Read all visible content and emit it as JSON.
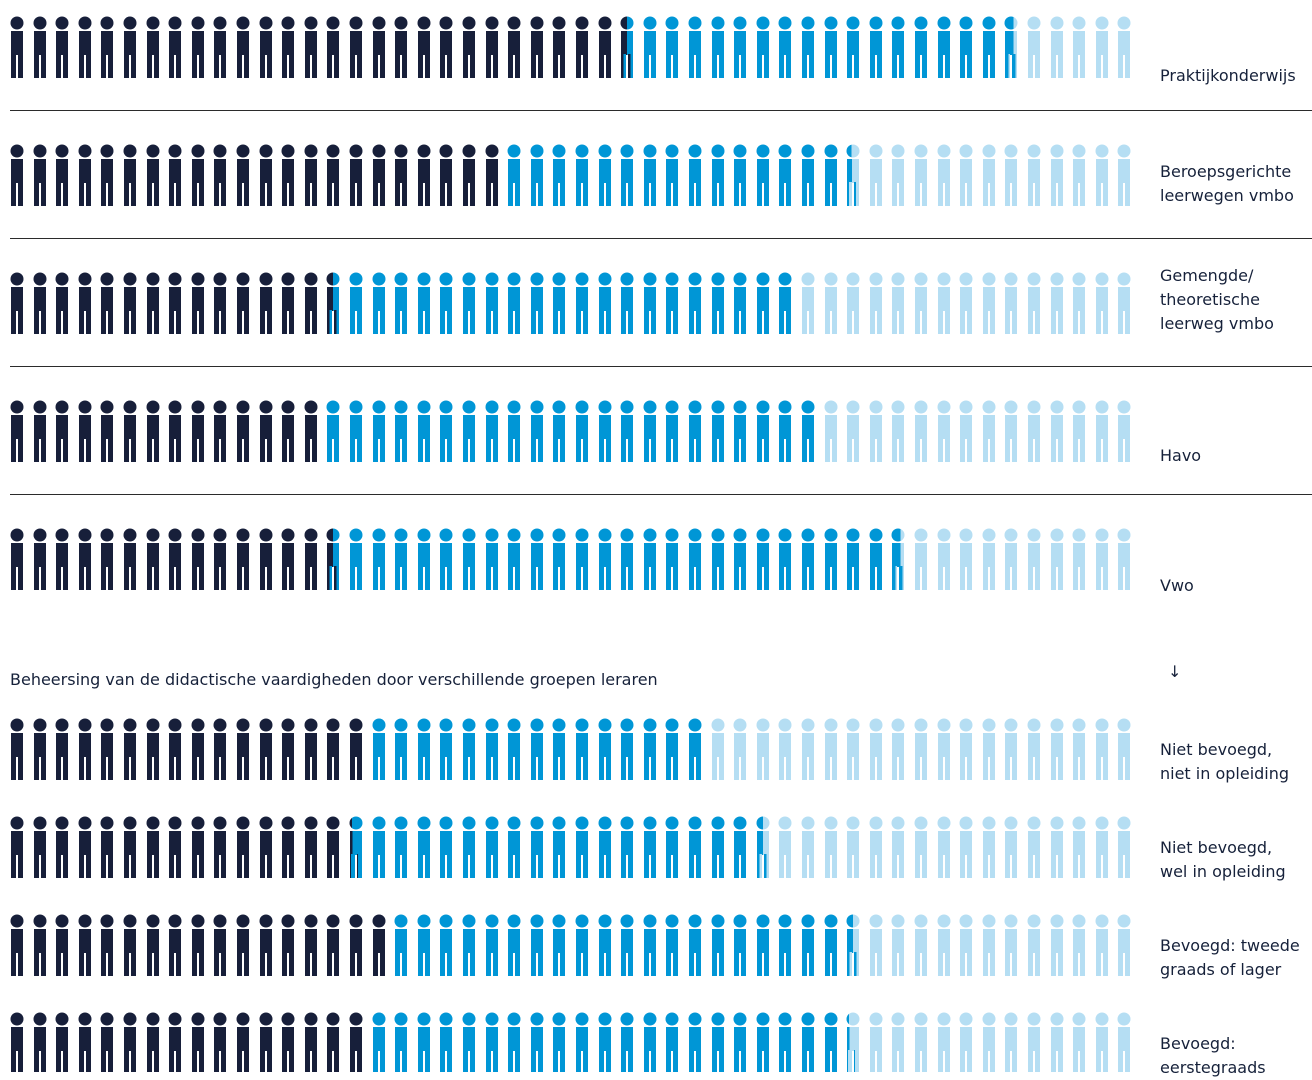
{
  "colors": {
    "dark": "#171f3a",
    "mid": "#0096d6",
    "light": "#b5def3"
  },
  "subtitle": "Beheersing van de didactische vaardigheden door verschillende groepen leraren",
  "arrow": "↓",
  "chart_data": {
    "type": "pictograph",
    "icons_per_row": 50,
    "groups": [
      {
        "rows": [
          {
            "label_lines": [
              "Praktijkonderwijs"
            ],
            "dark": 27.5,
            "mid": 17.2,
            "light": 5.3
          },
          {
            "label_lines": [
              "Beroepsgerichte",
              "leerwegen vmbo"
            ],
            "dark": 22,
            "mid": 15.4,
            "light": 12.6
          },
          {
            "label_lines": [
              "Gemengde/",
              "theoretische",
              "leerweg vmbo"
            ],
            "dark": 14.5,
            "mid": 20.5,
            "light": 15
          },
          {
            "label_lines": [
              "Havo"
            ],
            "dark": 14,
            "mid": 22,
            "light": 14
          },
          {
            "label_lines": [
              "Vwo"
            ],
            "dark": 14.5,
            "mid": 25.2,
            "light": 10.3
          }
        ]
      },
      {
        "rows": [
          {
            "label_lines": [
              "Niet bevoegd,",
              "niet in opleiding"
            ],
            "dark": 16,
            "mid": 15,
            "light": 19
          },
          {
            "label_lines": [
              "Niet bevoegd,",
              "wel in opleiding"
            ],
            "dark": 15.2,
            "mid": 18.3,
            "light": 16.5
          },
          {
            "label_lines": [
              "Bevoegd: tweede",
              "graads of lager"
            ],
            "dark": 17,
            "mid": 20.5,
            "light": 12.5
          },
          {
            "label_lines": [
              "Bevoegd:",
              "eerstegraads"
            ],
            "dark": 16,
            "mid": 21.2,
            "light": 12.8
          }
        ]
      }
    ]
  }
}
